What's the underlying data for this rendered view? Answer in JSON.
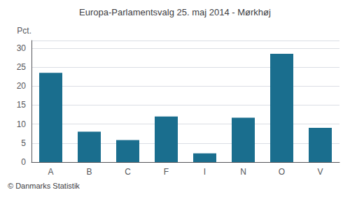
{
  "chart_data": {
    "type": "bar",
    "title": "Europa-Parlamentsvalg 25. maj 2014 - Mørkhøj",
    "ylabel": "Pct.",
    "footer": "© Danmarks Statistik",
    "categories": [
      "A",
      "B",
      "C",
      "F",
      "I",
      "N",
      "O",
      "V"
    ],
    "values": [
      23.5,
      8.0,
      5.8,
      12.0,
      2.3,
      11.7,
      28.5,
      9.0
    ],
    "color": "#1a6e8e",
    "ylim": [
      0,
      32
    ],
    "yticks": [
      0,
      5,
      10,
      15,
      20,
      25,
      30
    ],
    "grid": true
  }
}
